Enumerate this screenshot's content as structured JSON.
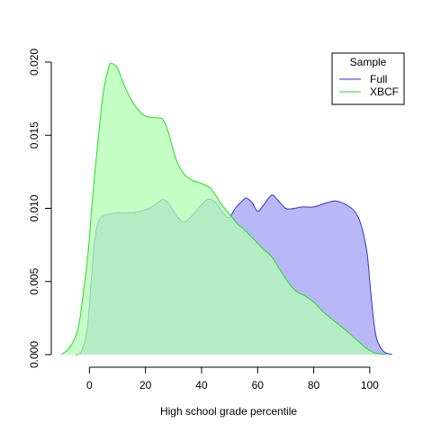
{
  "chart_data": {
    "type": "area",
    "xlabel": "High school grade percentile",
    "ylabel": "",
    "xlim": [
      -12,
      110
    ],
    "ylim": [
      0,
      0.02
    ],
    "x_ticks": [
      0,
      20,
      40,
      60,
      80,
      100
    ],
    "x_tick_labels": [
      "0",
      "20",
      "40",
      "60",
      "80",
      "100"
    ],
    "y_ticks": [
      0,
      0.005,
      0.01,
      0.015,
      0.02
    ],
    "y_tick_labels": [
      "0.000",
      "0.005",
      "0.010",
      "0.015",
      "0.020"
    ],
    "grid": false,
    "legend": {
      "title": "Sample",
      "position": "top-right"
    },
    "series": [
      {
        "name": "Full",
        "line_color": "#3333cc",
        "fill_color": "#b8b8f8",
        "points": [
          [
            -5,
            0
          ],
          [
            -3,
            0.0002
          ],
          [
            -1,
            0.0015
          ],
          [
            0,
            0.0035
          ],
          [
            1,
            0.006
          ],
          [
            2,
            0.008
          ],
          [
            3,
            0.009
          ],
          [
            5,
            0.0095
          ],
          [
            10,
            0.0097
          ],
          [
            15,
            0.0097
          ],
          [
            20,
            0.0099
          ],
          [
            23,
            0.0102
          ],
          [
            26,
            0.0106
          ],
          [
            28,
            0.0104
          ],
          [
            30,
            0.0098
          ],
          [
            33,
            0.0091
          ],
          [
            35,
            0.0092
          ],
          [
            38,
            0.0098
          ],
          [
            42,
            0.0106
          ],
          [
            45,
            0.0104
          ],
          [
            48,
            0.0096
          ],
          [
            50,
            0.0094
          ],
          [
            52,
            0.01
          ],
          [
            55,
            0.0106
          ],
          [
            56,
            0.0107
          ],
          [
            58,
            0.0104
          ],
          [
            60,
            0.0098
          ],
          [
            62,
            0.0102
          ],
          [
            65,
            0.0109
          ],
          [
            67,
            0.0106
          ],
          [
            70,
            0.01
          ],
          [
            73,
            0.01
          ],
          [
            76,
            0.0101
          ],
          [
            80,
            0.0101
          ],
          [
            85,
            0.0104
          ],
          [
            88,
            0.0105
          ],
          [
            92,
            0.0102
          ],
          [
            95,
            0.0097
          ],
          [
            97,
            0.0088
          ],
          [
            99,
            0.007
          ],
          [
            100,
            0.005
          ],
          [
            101,
            0.003
          ],
          [
            102,
            0.0015
          ],
          [
            103,
            0.0008
          ],
          [
            105,
            0.0002
          ],
          [
            108,
            0
          ]
        ]
      },
      {
        "name": "XBCF",
        "line_color": "#22dd22",
        "fill_color": "#b3ffb3",
        "points": [
          [
            -10,
            0
          ],
          [
            -8,
            0.0003
          ],
          [
            -6,
            0.0008
          ],
          [
            -4,
            0.0018
          ],
          [
            -3,
            0.003
          ],
          [
            -2,
            0.0045
          ],
          [
            -1,
            0.006
          ],
          [
            0,
            0.008
          ],
          [
            1,
            0.0105
          ],
          [
            3,
            0.0145
          ],
          [
            5,
            0.018
          ],
          [
            7,
            0.0197
          ],
          [
            8,
            0.0199
          ],
          [
            10,
            0.0196
          ],
          [
            12,
            0.0186
          ],
          [
            15,
            0.0174
          ],
          [
            18,
            0.0166
          ],
          [
            20,
            0.0163
          ],
          [
            23,
            0.0162
          ],
          [
            26,
            0.0161
          ],
          [
            28,
            0.0153
          ],
          [
            31,
            0.0133
          ],
          [
            34,
            0.0123
          ],
          [
            37,
            0.0119
          ],
          [
            40,
            0.0117
          ],
          [
            43,
            0.0114
          ],
          [
            45,
            0.0109
          ],
          [
            47,
            0.0103
          ],
          [
            50,
            0.0096
          ],
          [
            53,
            0.0089
          ],
          [
            55,
            0.0086
          ],
          [
            58,
            0.008
          ],
          [
            60,
            0.0076
          ],
          [
            62,
            0.0072
          ],
          [
            65,
            0.0067
          ],
          [
            68,
            0.0058
          ],
          [
            71,
            0.0049
          ],
          [
            74,
            0.0043
          ],
          [
            77,
            0.004
          ],
          [
            80,
            0.0036
          ],
          [
            83,
            0.003
          ],
          [
            86,
            0.0025
          ],
          [
            90,
            0.0019
          ],
          [
            93,
            0.0014
          ],
          [
            96,
            0.0009
          ],
          [
            99,
            0.0004
          ],
          [
            102,
            0.0001
          ],
          [
            106,
            0
          ]
        ]
      }
    ]
  }
}
